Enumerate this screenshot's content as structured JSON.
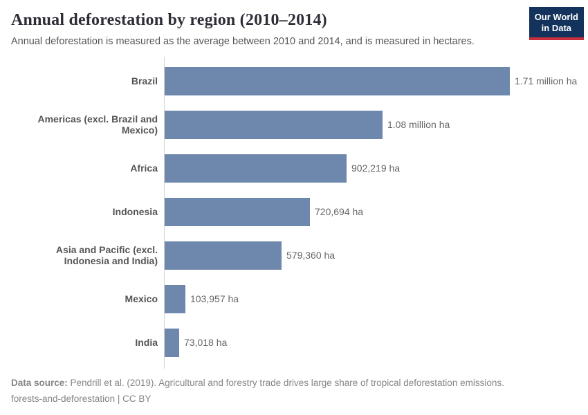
{
  "header": {
    "logo": {
      "line1": "Our World",
      "line2": "in Data",
      "bg_color": "#14335c",
      "accent_color": "#c82d3c"
    }
  },
  "chart_data": {
    "type": "bar",
    "orientation": "horizontal",
    "title": "Annual deforestation by region (2010–2014)",
    "subtitle": "Annual deforestation is measured as the average between 2010 and 2014, and is measured in hectares.",
    "categories": [
      "Brazil",
      "Americas (excl. Brazil and Mexico)",
      "Africa",
      "Indonesia",
      "Asia and Pacific (excl. Indonesia and India)",
      "Mexico",
      "India"
    ],
    "values": [
      1710000,
      1080000,
      902219,
      720694,
      579360,
      103957,
      73018
    ],
    "value_labels": [
      "1.71 million ha",
      "1.08 million ha",
      "902,219 ha",
      "720,694 ha",
      "579,360 ha",
      "103,957 ha",
      "73,018 ha"
    ],
    "unit": "hectares",
    "xlim": [
      0,
      1710000
    ],
    "bar_color": "#6e88ad",
    "grid": false,
    "legend": "none"
  },
  "footer": {
    "source_label": "Data source:",
    "source_text": " Pendrill et al. (2019). Agricultural and forestry trade drives large share of tropical deforestation emissions.",
    "line2": "forests-and-deforestation | CC BY"
  }
}
